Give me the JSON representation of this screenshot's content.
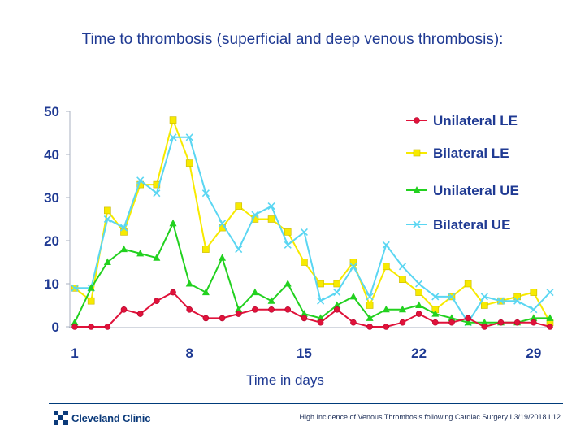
{
  "page": {
    "title": "Time to thrombosis (superficial and deep venous thrombosis):",
    "footer": {
      "logo_text": "Cleveland Clinic",
      "caption": "High Incidence of Venous Thrombosis following Cardiac Surgery  I  3/19/2018  I  12"
    }
  },
  "chart_data": {
    "type": "line",
    "title": "Time to thrombosis (superficial and deep venous thrombosis):",
    "xlabel": "Time in days",
    "ylabel": "",
    "x": [
      1,
      2,
      3,
      4,
      5,
      6,
      7,
      8,
      9,
      10,
      11,
      12,
      13,
      14,
      15,
      16,
      17,
      18,
      19,
      20,
      21,
      22,
      23,
      24,
      25,
      26,
      27,
      28,
      29,
      30
    ],
    "xticks": [
      1,
      8,
      15,
      22,
      29
    ],
    "xtick_labels": [
      "1",
      "8",
      "15",
      "22",
      "29"
    ],
    "xlim": [
      1,
      30
    ],
    "yticks": [
      0,
      10,
      20,
      30,
      40,
      50
    ],
    "ytick_labels": [
      "0",
      "10",
      "20",
      "30",
      "40",
      "50"
    ],
    "ylim": [
      0,
      50
    ],
    "grid": false,
    "legend_position": "top-right",
    "series": [
      {
        "name": "Unilateral LE",
        "color": "#e0123a",
        "marker": "circle",
        "values": [
          0,
          0,
          0,
          4,
          3,
          6,
          8,
          4,
          2,
          2,
          3,
          4,
          4,
          4,
          2,
          1,
          4,
          1,
          0,
          0,
          1,
          3,
          1,
          1,
          2,
          0,
          1,
          1,
          1,
          0
        ]
      },
      {
        "name": "Bilateral LE",
        "color": "#f7ea00",
        "marker": "square",
        "values": [
          9,
          6,
          27,
          22,
          33,
          33,
          48,
          38,
          18,
          23,
          28,
          25,
          25,
          22,
          15,
          10,
          10,
          15,
          5,
          14,
          11,
          8,
          4,
          7,
          10,
          5,
          6,
          7,
          8,
          1
        ]
      },
      {
        "name": "Unilateral UE",
        "color": "#22d11f",
        "marker": "triangle",
        "values": [
          1,
          9,
          15,
          18,
          17,
          16,
          24,
          10,
          8,
          16,
          4,
          8,
          6,
          10,
          3,
          2,
          5,
          7,
          2,
          4,
          4,
          5,
          3,
          2,
          1,
          1,
          1,
          1,
          2,
          2
        ]
      },
      {
        "name": "Bilateral UE",
        "color": "#5ad6f2",
        "marker": "x",
        "values": [
          9,
          9,
          25,
          23,
          34,
          31,
          44,
          44,
          31,
          24,
          18,
          26,
          28,
          19,
          22,
          6,
          8,
          14,
          7,
          19,
          14,
          10,
          7,
          7,
          1,
          7,
          6,
          6,
          4,
          8
        ]
      }
    ]
  }
}
